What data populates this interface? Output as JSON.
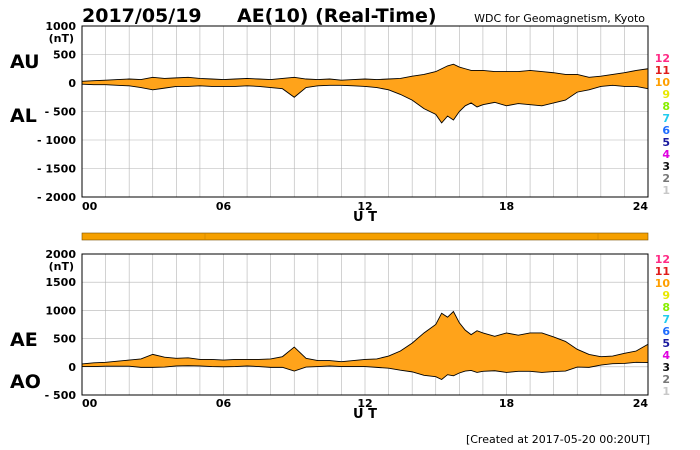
{
  "header": {
    "date": "2017/05/19",
    "title": "AE(10) (Real-Time)",
    "source": "WDC for Geomagnetism, Kyoto"
  },
  "footer": {
    "created": "[Created at 2017-05-20 00:20UT]"
  },
  "colors": {
    "fill": "#ffa31a",
    "line": "#000000",
    "grid": "#b4b4b4",
    "status_bar": "#f5a000"
  },
  "station_legend": [
    {
      "label": "12",
      "color": "#ff2a85"
    },
    {
      "label": "11",
      "color": "#e01b1b"
    },
    {
      "label": "10",
      "color": "#ff9f00"
    },
    {
      "label": "9",
      "color": "#e8e800"
    },
    {
      "label": "8",
      "color": "#88ee00"
    },
    {
      "label": "7",
      "color": "#22ccee"
    },
    {
      "label": "6",
      "color": "#1e6cff"
    },
    {
      "label": "5",
      "color": "#1a1a9e"
    },
    {
      "label": "4",
      "color": "#e000e0"
    },
    {
      "label": "3",
      "color": "#111111"
    },
    {
      "label": "2",
      "color": "#777777"
    },
    {
      "label": "1",
      "color": "#c8c8c8"
    }
  ],
  "chart_data": [
    {
      "type": "area",
      "upper_label": "AU",
      "lower_label": "AL",
      "unit": "(nT)",
      "xlabel": "U T",
      "xlim": [
        0,
        24
      ],
      "ylim": [
        -2000,
        1000
      ],
      "x_ticks": [
        "00",
        "06",
        "12",
        "18",
        "24"
      ],
      "y_ticks": [
        "1000",
        "500",
        "0",
        "- 500",
        "- 1000",
        "- 1500",
        "- 2000"
      ],
      "grid": true,
      "x": [
        0,
        0.5,
        1,
        1.5,
        2,
        2.5,
        3,
        3.5,
        4,
        4.5,
        5,
        5.5,
        6,
        6.5,
        7,
        7.5,
        8,
        8.5,
        9,
        9.5,
        10,
        10.5,
        11,
        11.5,
        12,
        12.5,
        13,
        13.5,
        14,
        14.5,
        15,
        15.25,
        15.5,
        15.75,
        16,
        16.25,
        16.5,
        16.75,
        17,
        17.5,
        18,
        18.5,
        19,
        19.5,
        20,
        20.5,
        21,
        21.5,
        22,
        22.5,
        23,
        23.5,
        24
      ],
      "series": [
        {
          "name": "AU",
          "values": [
            30,
            40,
            50,
            60,
            70,
            60,
            100,
            80,
            90,
            100,
            80,
            70,
            60,
            70,
            80,
            70,
            60,
            80,
            100,
            70,
            60,
            70,
            50,
            60,
            70,
            60,
            70,
            80,
            120,
            150,
            200,
            250,
            300,
            330,
            280,
            250,
            220,
            220,
            220,
            200,
            200,
            200,
            220,
            200,
            180,
            150,
            150,
            100,
            120,
            150,
            180,
            220,
            250
          ]
        },
        {
          "name": "AL",
          "values": [
            -20,
            -30,
            -30,
            -40,
            -50,
            -80,
            -120,
            -90,
            -60,
            -60,
            -50,
            -60,
            -60,
            -60,
            -50,
            -60,
            -80,
            -100,
            -250,
            -80,
            -50,
            -40,
            -40,
            -50,
            -60,
            -80,
            -120,
            -200,
            -300,
            -450,
            -550,
            -700,
            -580,
            -650,
            -500,
            -400,
            -350,
            -420,
            -380,
            -340,
            -400,
            -360,
            -380,
            -400,
            -350,
            -300,
            -160,
            -120,
            -60,
            -40,
            -60,
            -60,
            -100
          ]
        }
      ]
    },
    {
      "type": "area",
      "upper_label": "AE",
      "lower_label": "AO",
      "unit": "(nT)",
      "xlabel": "U T",
      "xlim": [
        0,
        24
      ],
      "ylim": [
        -500,
        2000
      ],
      "x_ticks": [
        "00",
        "06",
        "12",
        "18",
        "24"
      ],
      "y_ticks": [
        "2000",
        "1500",
        "1000",
        "500",
        "0",
        "- 500"
      ],
      "grid": true,
      "x": [
        0,
        0.5,
        1,
        1.5,
        2,
        2.5,
        3,
        3.5,
        4,
        4.5,
        5,
        5.5,
        6,
        6.5,
        7,
        7.5,
        8,
        8.5,
        9,
        9.5,
        10,
        10.5,
        11,
        11.5,
        12,
        12.5,
        13,
        13.5,
        14,
        14.5,
        15,
        15.25,
        15.5,
        15.75,
        16,
        16.25,
        16.5,
        16.75,
        17,
        17.5,
        18,
        18.5,
        19,
        19.5,
        20,
        20.5,
        21,
        21.5,
        22,
        22.5,
        23,
        23.5,
        24
      ],
      "series": [
        {
          "name": "AE",
          "values": [
            50,
            70,
            80,
            100,
            120,
            140,
            220,
            170,
            150,
            160,
            130,
            130,
            120,
            130,
            130,
            130,
            140,
            180,
            350,
            150,
            110,
            110,
            90,
            110,
            130,
            140,
            190,
            280,
            420,
            600,
            750,
            950,
            880,
            980,
            780,
            650,
            570,
            640,
            600,
            540,
            600,
            560,
            600,
            600,
            530,
            450,
            310,
            220,
            180,
            190,
            240,
            280,
            400
          ]
        },
        {
          "name": "AO",
          "values": [
            5,
            5,
            10,
            10,
            10,
            -10,
            -10,
            -5,
            15,
            20,
            15,
            5,
            0,
            5,
            15,
            5,
            -10,
            -10,
            -75,
            -5,
            5,
            15,
            5,
            5,
            5,
            -10,
            -25,
            -60,
            -90,
            -150,
            -175,
            -225,
            -140,
            -160,
            -110,
            -75,
            -65,
            -100,
            -80,
            -70,
            -100,
            -80,
            -80,
            -100,
            -85,
            -75,
            -5,
            -10,
            30,
            55,
            60,
            80,
            75
          ]
        }
      ]
    }
  ]
}
